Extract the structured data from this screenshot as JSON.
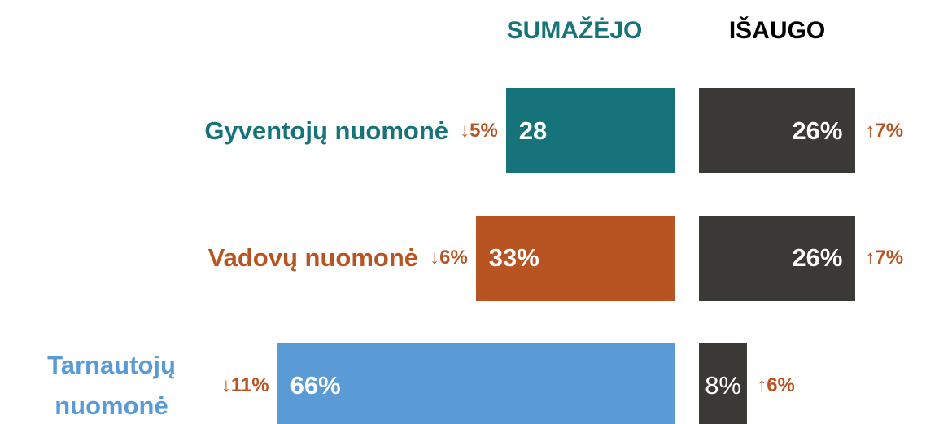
{
  "chart_data": {
    "type": "diverging_bar",
    "categories": [
      "Gyventojų nuomonė",
      "Vadovų nuomonė",
      "Tarnautojų nuomonė"
    ],
    "category_colors": [
      "#17737A",
      "#B85422",
      "#5B9BD5"
    ],
    "change_color": "#B85422",
    "series": [
      {
        "name": "SUMAŽĖJO",
        "title_color": "#17737A",
        "values": [
          28,
          33,
          66
        ],
        "value_labels": [
          "28",
          "33%",
          "66%"
        ],
        "changes": [
          -5,
          -6,
          -11
        ],
        "change_labels": [
          "↓5%",
          "↓6%",
          "↓11%"
        ]
      },
      {
        "name": "IŠAUGO",
        "title_color": "#000000",
        "color": "#3B3936",
        "values": [
          26,
          26,
          8
        ],
        "value_labels": [
          "26%",
          "26%",
          "8%"
        ],
        "changes": [
          7,
          7,
          6
        ],
        "change_labels": [
          "↑7%",
          "↑7%",
          "↑6%"
        ]
      }
    ]
  }
}
